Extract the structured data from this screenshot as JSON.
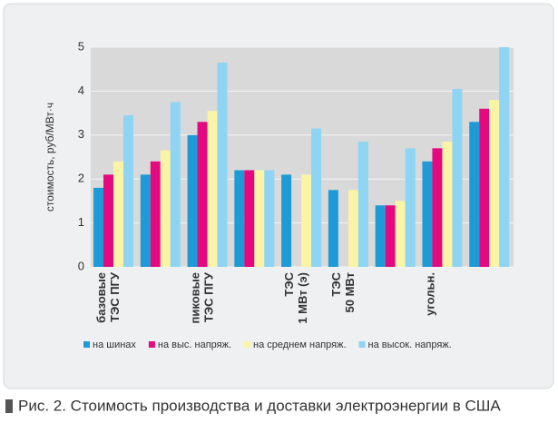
{
  "chart_data": {
    "type": "bar",
    "title": "Рис. 2. Стоимость производства и доставки электроэнергии в США",
    "y_label": "стоимость, руб/МВт·ч",
    "categories": [
      [
        "базовые",
        "ТЭС ПГУ"
      ],
      null,
      [
        "пиковые",
        "ТЭС ПГУ"
      ],
      null,
      [
        "ТЭС",
        "1 МВт (э)"
      ],
      [
        "ТЭС",
        "50 МВт"
      ],
      null,
      [
        "угольн."
      ],
      null
    ],
    "series": [
      {
        "name": "на шинах",
        "color": "#1e9bd7",
        "values": [
          1.8,
          2.1,
          3.0,
          2.2,
          2.1,
          1.75,
          1.4,
          2.4,
          3.3
        ]
      },
      {
        "name": "на выс. напряж.",
        "color": "#e5097f",
        "values": [
          2.1,
          2.4,
          3.3,
          2.2,
          null,
          null,
          1.4,
          2.7,
          3.6
        ]
      },
      {
        "name": "на среднем напряж.",
        "color": "#fbf4a6",
        "values": [
          2.4,
          2.65,
          3.55,
          2.2,
          2.1,
          1.75,
          1.5,
          2.85,
          3.8
        ]
      },
      {
        "name": "на высок. напряж.",
        "color": "#8ed4f3",
        "values": [
          3.45,
          3.75,
          4.65,
          2.2,
          3.15,
          2.85,
          2.7,
          4.05,
          5.0
        ]
      }
    ],
    "ylim": [
      0,
      5
    ],
    "yticks": [
      0,
      1,
      2,
      3,
      4,
      5
    ],
    "grid": true
  }
}
